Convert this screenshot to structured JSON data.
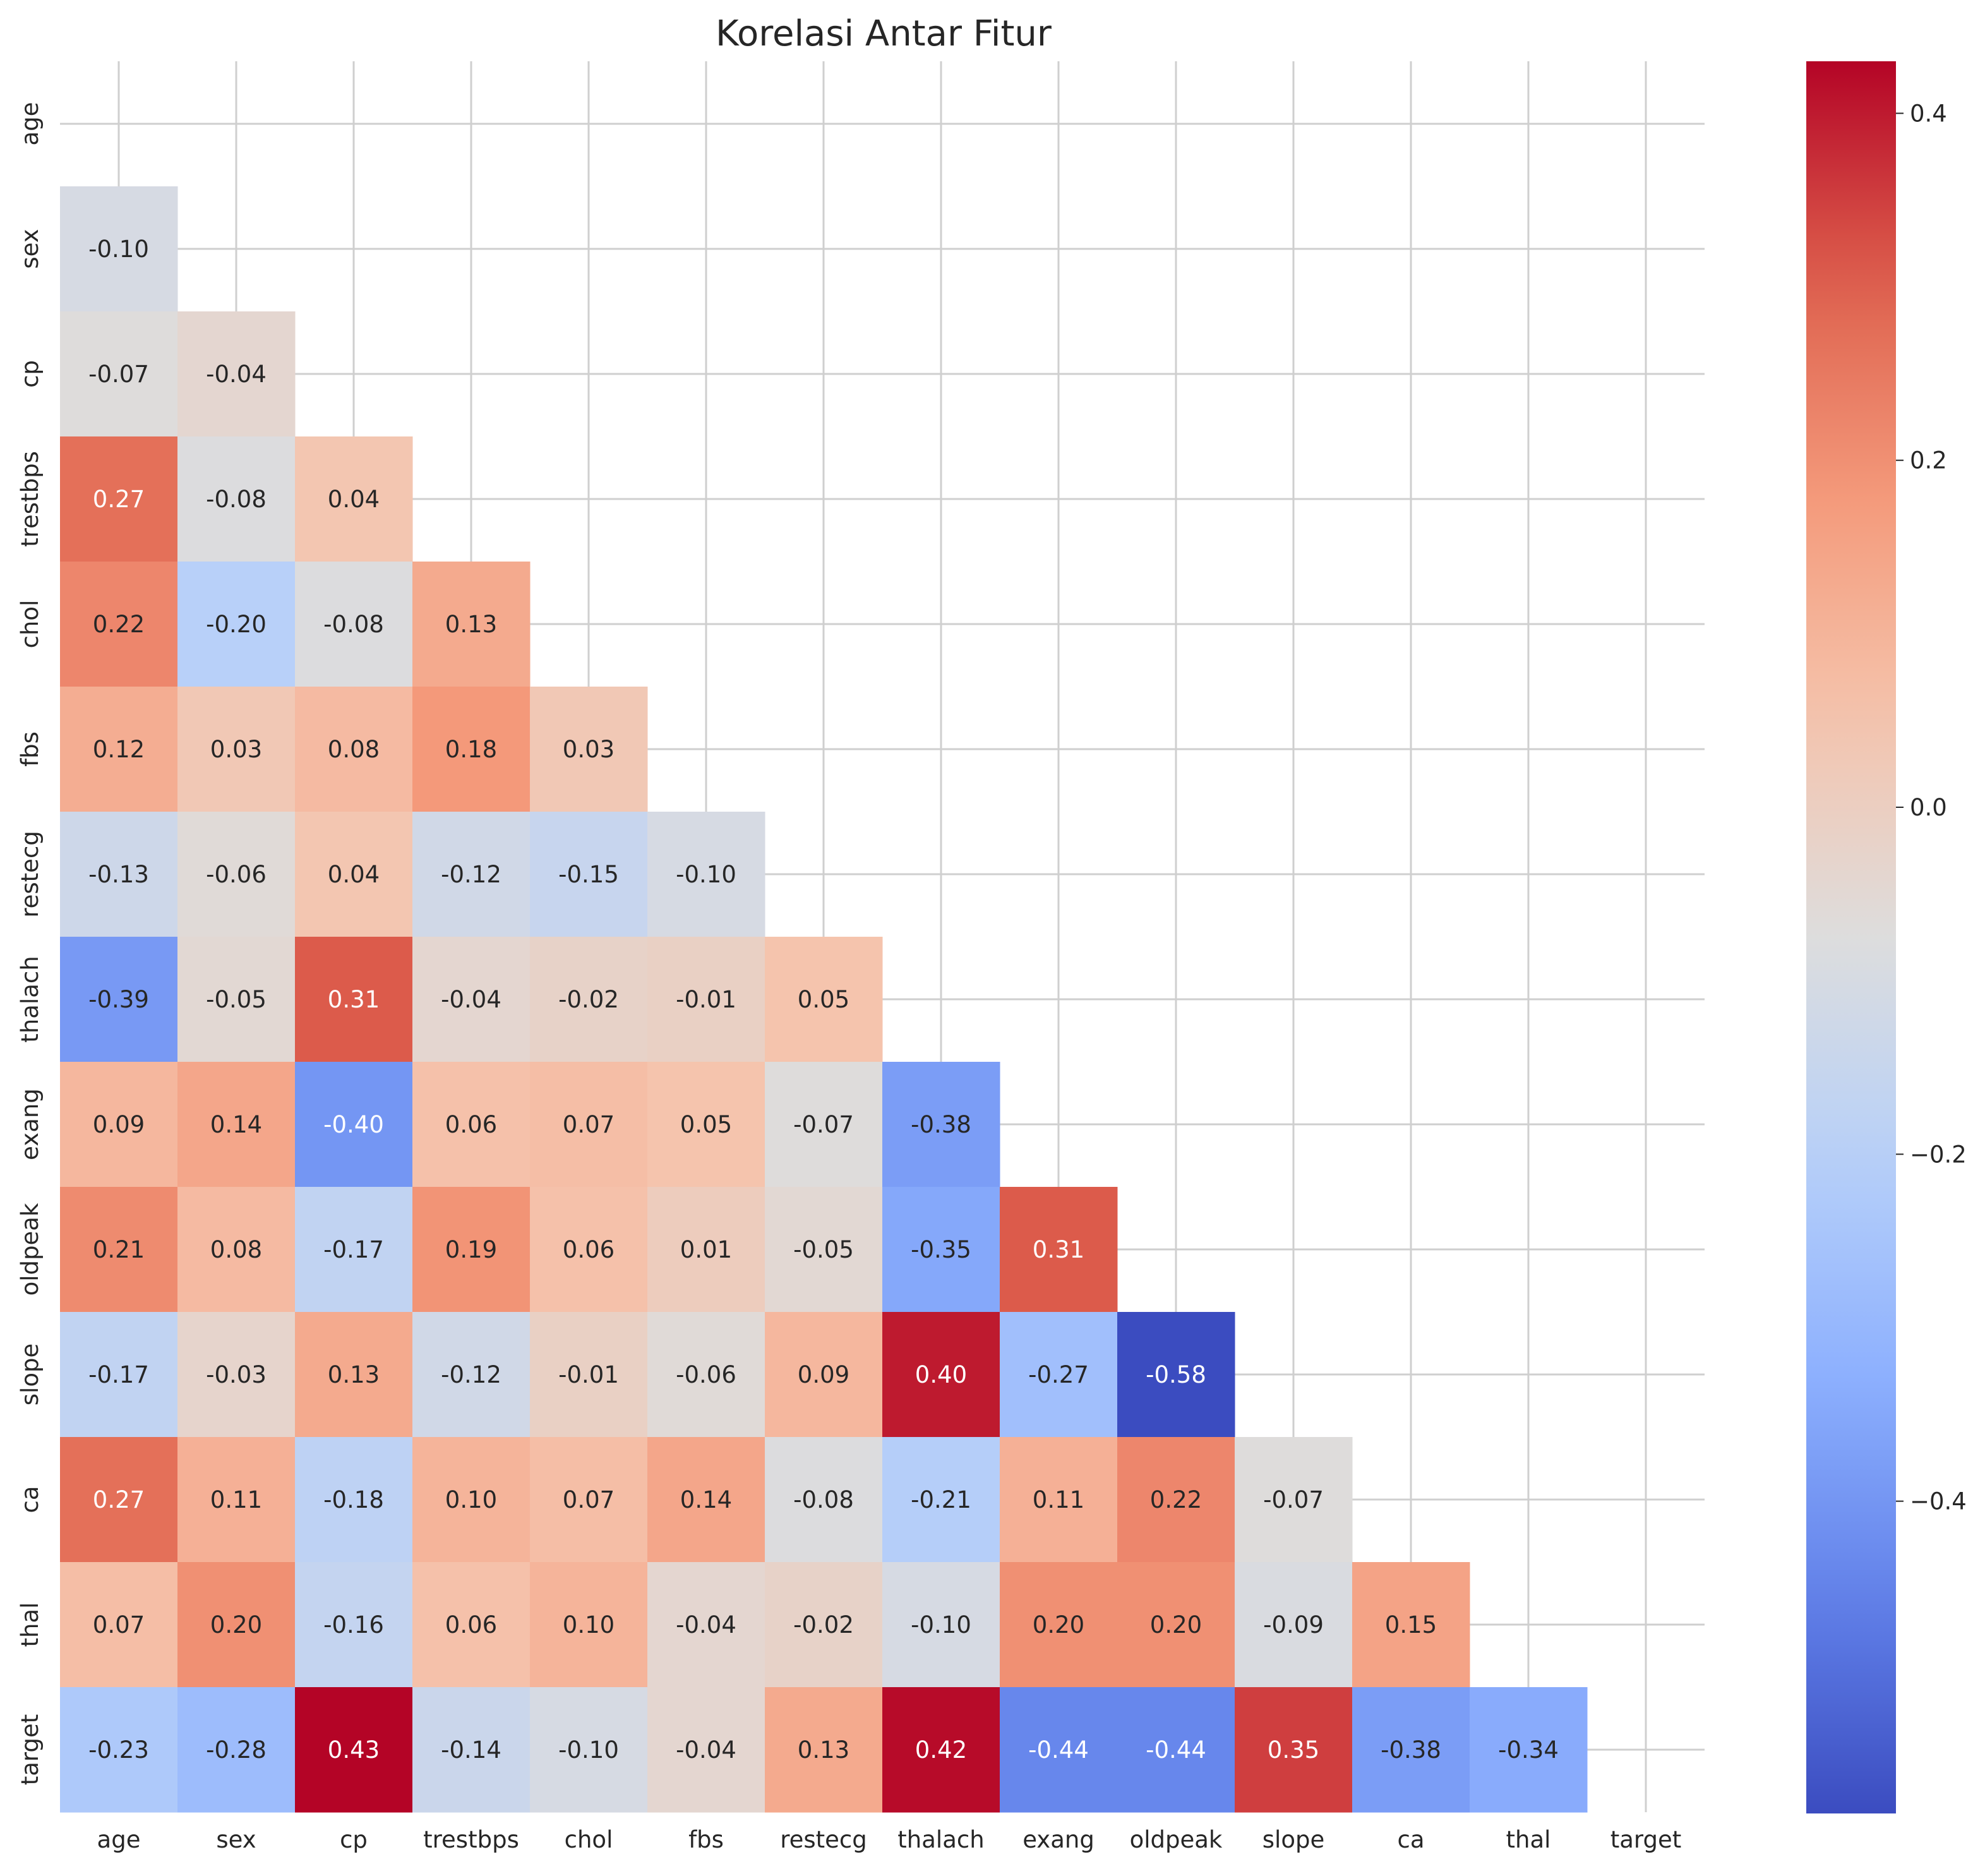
{
  "chart_data": {
    "type": "heatmap",
    "title": "Korelasi Antar Fitur",
    "xlabel": "",
    "ylabel": "",
    "colormap": "coolwarm",
    "mask": "upper-triangle-including-diagonal",
    "vmin": -0.58,
    "vmax": 0.43,
    "grid": true,
    "variables": [
      "age",
      "sex",
      "cp",
      "trestbps",
      "chol",
      "fbs",
      "restecg",
      "thalach",
      "exang",
      "oldpeak",
      "slope",
      "ca",
      "thal",
      "target"
    ],
    "matrix": [
      [],
      [
        -0.1
      ],
      [
        -0.07,
        -0.04
      ],
      [
        0.27,
        -0.08,
        0.04
      ],
      [
        0.22,
        -0.2,
        -0.08,
        0.13
      ],
      [
        0.12,
        0.03,
        0.08,
        0.18,
        0.03
      ],
      [
        -0.13,
        -0.06,
        0.04,
        -0.12,
        -0.15,
        -0.1
      ],
      [
        -0.39,
        -0.05,
        0.31,
        -0.04,
        -0.02,
        -0.01,
        0.05
      ],
      [
        0.09,
        0.14,
        -0.4,
        0.06,
        0.07,
        0.05,
        -0.07,
        -0.38
      ],
      [
        0.21,
        0.08,
        -0.17,
        0.19,
        0.06,
        0.01,
        -0.05,
        -0.35,
        0.31
      ],
      [
        -0.17,
        -0.03,
        0.13,
        -0.12,
        -0.01,
        -0.06,
        0.09,
        0.4,
        -0.27,
        -0.58
      ],
      [
        0.27,
        0.11,
        -0.18,
        0.1,
        0.07,
        0.14,
        -0.08,
        -0.21,
        0.11,
        0.22,
        -0.07
      ],
      [
        0.07,
        0.2,
        -0.16,
        0.06,
        0.1,
        -0.04,
        -0.02,
        -0.1,
        0.2,
        0.2,
        -0.09,
        0.15
      ],
      [
        -0.23,
        -0.28,
        0.43,
        -0.14,
        -0.1,
        -0.04,
        0.13,
        0.42,
        -0.44,
        -0.44,
        0.35,
        -0.38,
        -0.34
      ]
    ],
    "colorbar": {
      "ticks": [
        0.4,
        0.2,
        0.0,
        -0.2,
        -0.4
      ],
      "tick_labels": [
        "0.4",
        "0.2",
        "0.0",
        "−0.2",
        "−0.4"
      ]
    }
  }
}
